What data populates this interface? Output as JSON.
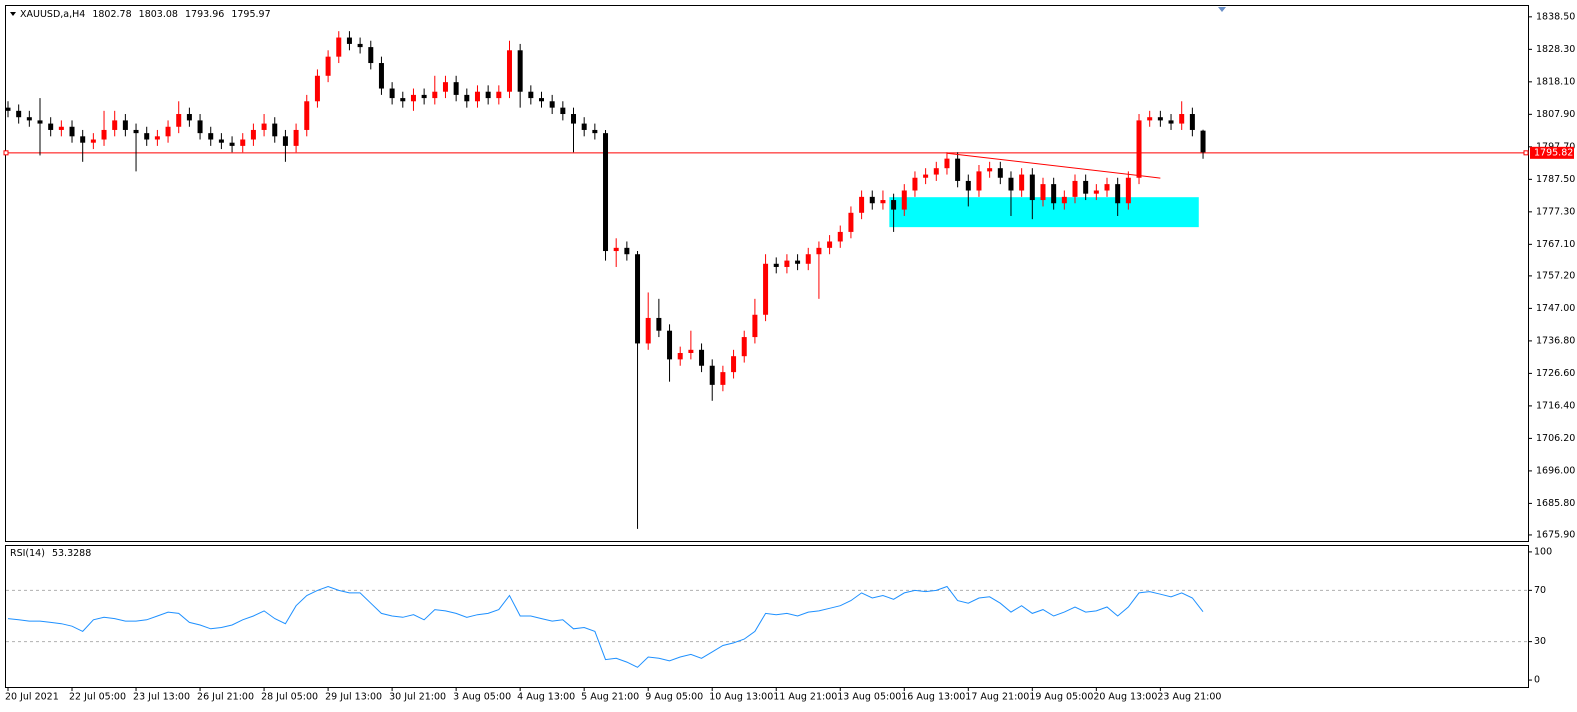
{
  "chart_data": {
    "type": "candlestick",
    "symbol": "XAUUSD,a,H4",
    "categories": [
      "20 Jul 2021",
      null,
      null,
      null,
      null,
      null,
      "22 Jul 05:00",
      null,
      null,
      null,
      null,
      null,
      "23 Jul 13:00",
      null,
      null,
      null,
      null,
      null,
      "26 Jul 21:00",
      null,
      null,
      null,
      null,
      null,
      "28 Jul 05:00",
      null,
      null,
      null,
      null,
      null,
      "29 Jul 13:00",
      null,
      null,
      null,
      null,
      null,
      "30 Jul 21:00",
      null,
      null,
      null,
      null,
      null,
      "3 Aug 05:00",
      null,
      null,
      null,
      null,
      null,
      "4 Aug 13:00",
      null,
      null,
      null,
      null,
      null,
      "5 Aug 21:00",
      null,
      null,
      null,
      null,
      null,
      "9 Aug 05:00",
      null,
      null,
      null,
      null,
      null,
      "10 Aug 13:00",
      null,
      null,
      null,
      null,
      null,
      "11 Aug 21:00",
      null,
      null,
      null,
      null,
      null,
      "13 Aug 05:00",
      null,
      null,
      null,
      null,
      null,
      "16 Aug 13:00",
      null,
      null,
      null,
      null,
      null,
      "17 Aug 21:00",
      null,
      null,
      null,
      null,
      null,
      "19 Aug 05:00",
      null,
      null,
      null,
      null,
      null,
      "20 Aug 13:00",
      null,
      null,
      null,
      null,
      null,
      "23 Aug 21:00",
      null,
      null,
      null,
      null
    ],
    "open": [
      1810,
      1809,
      1807,
      1806,
      1805,
      1803,
      1804,
      1801,
      1799,
      1800,
      1803,
      1806,
      1803,
      1802,
      1800,
      1801,
      1804,
      1808,
      1806,
      1802,
      1800,
      1799,
      1798,
      1800,
      1803,
      1805,
      1801,
      1798,
      1803,
      1812,
      1820,
      1826,
      1832,
      1830,
      1829,
      1824,
      1816,
      1813,
      1812,
      1814,
      1813,
      1815,
      1818,
      1814,
      1812,
      1815,
      1813,
      1815,
      1828,
      1815,
      1813,
      1812,
      1810,
      1808,
      1805,
      1803,
      1802,
      1765,
      1766,
      1764,
      1736,
      1744,
      1740,
      1731,
      1733,
      1734,
      1729,
      1723,
      1727,
      1732,
      1738,
      1745,
      1761,
      1760,
      1762,
      1761,
      1764,
      1766,
      1768,
      1771,
      1777,
      1782,
      1780,
      1781,
      1778,
      1784,
      1788,
      1789,
      1791,
      1794,
      1787,
      1784,
      1790,
      1791,
      1788,
      1784,
      1789,
      1781,
      1786,
      1780,
      1782,
      1787,
      1783,
      1784,
      1786,
      1780,
      1788,
      1806,
      1807,
      1806,
      1805,
      1808,
      1802.78
    ],
    "high": [
      1812,
      1811,
      1809,
      1813,
      1807,
      1806,
      1806,
      1803,
      1802,
      1809,
      1809,
      1808,
      1805,
      1804,
      1803,
      1806,
      1812,
      1810,
      1808,
      1804,
      1802,
      1801,
      1802,
      1805,
      1808,
      1807,
      1803,
      1805,
      1814,
      1822,
      1828,
      1834,
      1834,
      1832,
      1831,
      1826,
      1818,
      1815,
      1816,
      1816,
      1820,
      1820,
      1820,
      1816,
      1817,
      1817,
      1817,
      1831,
      1830,
      1817,
      1815,
      1814,
      1812,
      1810,
      1807,
      1805,
      1803,
      1769,
      1768,
      1765,
      1752,
      1750,
      1742,
      1735,
      1740,
      1736,
      1731,
      1729,
      1734,
      1740,
      1750,
      1764,
      1763,
      1764,
      1764,
      1766,
      1768,
      1770,
      1773,
      1779,
      1784,
      1784,
      1784,
      1783,
      1786,
      1790,
      1791,
      1793,
      1796,
      1796,
      1789,
      1792,
      1793,
      1793,
      1790,
      1791,
      1791,
      1788,
      1788,
      1784,
      1789,
      1789,
      1786,
      1788,
      1788,
      1790,
      1808,
      1809,
      1809,
      1808,
      1812,
      1810,
      1803.08
    ],
    "low": [
      1807,
      1805,
      1804,
      1795,
      1801,
      1801,
      1799,
      1793,
      1797,
      1798,
      1801,
      1801,
      1790,
      1798,
      1798,
      1799,
      1802,
      1804,
      1800,
      1798,
      1797,
      1796,
      1796,
      1798,
      1801,
      1799,
      1793,
      1796,
      1801,
      1810,
      1818,
      1824,
      1828,
      1827,
      1822,
      1814,
      1811,
      1810,
      1809,
      1811,
      1811,
      1813,
      1812,
      1810,
      1810,
      1811,
      1811,
      1813,
      1810,
      1811,
      1810,
      1808,
      1806,
      1796,
      1801,
      1800,
      1762,
      1760,
      1762,
      1677.8,
      1734,
      1738,
      1724,
      1729,
      1731,
      1727,
      1718,
      1721,
      1725,
      1730,
      1736,
      1743,
      1758,
      1758,
      1759,
      1759,
      1750,
      1764,
      1766,
      1769,
      1775,
      1778,
      1778,
      1771,
      1776,
      1782,
      1786,
      1787,
      1789,
      1785,
      1779,
      1782,
      1788,
      1786,
      1776,
      1782,
      1775,
      1779,
      1778,
      1778,
      1780,
      1781,
      1781,
      1782,
      1776,
      1778,
      1786,
      1804,
      1804,
      1803,
      1803,
      1801,
      1793.96
    ],
    "close": [
      1809,
      1807,
      1806,
      1805,
      1803,
      1804,
      1801,
      1799,
      1800,
      1803,
      1806,
      1803,
      1802,
      1800,
      1801,
      1804,
      1808,
      1806,
      1802,
      1800,
      1799,
      1798,
      1800,
      1803,
      1805,
      1801,
      1798,
      1803,
      1812,
      1820,
      1826,
      1832,
      1830,
      1829,
      1824,
      1816,
      1813,
      1812,
      1814,
      1813,
      1815,
      1818,
      1814,
      1812,
      1815,
      1813,
      1815,
      1828,
      1815,
      1813,
      1812,
      1810,
      1808,
      1805,
      1803,
      1802,
      1765,
      1766,
      1764,
      1736,
      1744,
      1740,
      1731,
      1733,
      1734,
      1729,
      1723,
      1727,
      1732,
      1738,
      1745,
      1761,
      1760,
      1762,
      1761,
      1764,
      1766,
      1768,
      1771,
      1777,
      1782,
      1780,
      1781,
      1778,
      1784,
      1788,
      1789,
      1791,
      1794,
      1787,
      1784,
      1790,
      1791,
      1788,
      1784,
      1789,
      1781,
      1786,
      1780,
      1782,
      1787,
      1783,
      1784,
      1786,
      1780,
      1788,
      1806,
      1807,
      1806,
      1805,
      1808,
      1803,
      1795.97
    ],
    "up_color": "#ff0000",
    "down_color": "#000000",
    "ylim": [
      1674,
      1841.9
    ],
    "yticks": [
      {
        "value": 1838.5,
        "label": "1838.50"
      },
      {
        "value": 1828.3,
        "label": "1828.30"
      },
      {
        "value": 1818.1,
        "label": "1818.10"
      },
      {
        "value": 1807.9,
        "label": "1807.90"
      },
      {
        "value": 1797.7,
        "label": "1797.70"
      },
      {
        "value": 1787.5,
        "label": "1787.50"
      },
      {
        "value": 1777.3,
        "label": "1777.30"
      },
      {
        "value": 1767.1,
        "label": "1767.10"
      },
      {
        "value": 1757.2,
        "label": "1757.20"
      },
      {
        "value": 1747,
        "label": "1747.00"
      },
      {
        "value": 1736.8,
        "label": "1736.80"
      },
      {
        "value": 1726.6,
        "label": "1726.60"
      },
      {
        "value": 1716.4,
        "label": "1716.40"
      },
      {
        "value": 1706.2,
        "label": "1706.20"
      },
      {
        "value": 1696,
        "label": "1696.00"
      },
      {
        "value": 1685.8,
        "label": "1685.80"
      },
      {
        "value": 1675.9,
        "label": "1675.90"
      }
    ],
    "price_line": {
      "value": 1795.82,
      "color": "#ff0000"
    },
    "trendline": {
      "x": [
        88,
        108
      ],
      "y": [
        1795.7,
        1787.9
      ],
      "color": "#ff0000"
    },
    "zone": {
      "x": [
        82.6,
        111.6
      ],
      "y": [
        1772.5,
        1781.9
      ],
      "color": "#00ffff"
    },
    "indicator": {
      "type": "line",
      "name": "RSI(14)",
      "color": "#1e90ff",
      "values": [
        48,
        47,
        46,
        46,
        45,
        44,
        42,
        38,
        47,
        49,
        48,
        46,
        46,
        47,
        50,
        53,
        52,
        45,
        43,
        40,
        41,
        43,
        47,
        50,
        54,
        48,
        44,
        58,
        66,
        70,
        73,
        70,
        68,
        68,
        60,
        52,
        50,
        49,
        51,
        47,
        55,
        54,
        52,
        49,
        51,
        52,
        55,
        66,
        50,
        50,
        48,
        46,
        47,
        40,
        41,
        38,
        16,
        17,
        14,
        10,
        18,
        17,
        15,
        18,
        20,
        17,
        22,
        27,
        29,
        32,
        38,
        52,
        51,
        52,
        50,
        53,
        54,
        56,
        58,
        62,
        68,
        64,
        66,
        63,
        68,
        70,
        69,
        70,
        73,
        62,
        60,
        64,
        65,
        60,
        53,
        58,
        52,
        55,
        50,
        53,
        57,
        53,
        54,
        57,
        50,
        57,
        68,
        69,
        67,
        65,
        68,
        64,
        53.3288
      ],
      "ylim": [
        -5.4,
        104.6
      ],
      "yticks": [
        100,
        70,
        30,
        0
      ],
      "levels": [
        70,
        30
      ]
    }
  }
}
